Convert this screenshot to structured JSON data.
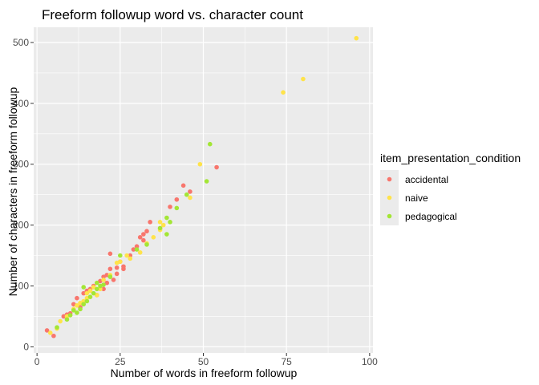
{
  "chart_data": {
    "type": "scatter",
    "title": "Freeform followup word vs. character count",
    "xlabel": "Number of words in freeform followup",
    "ylabel": "Number of characters in freeform followup",
    "xlim": [
      -1,
      101
    ],
    "ylim": [
      -10,
      525
    ],
    "x_ticks": [
      0,
      25,
      50,
      75,
      100
    ],
    "y_ticks": [
      0,
      100,
      200,
      300,
      400,
      500
    ],
    "grid": true,
    "legend": {
      "title": "item_presentation_condition",
      "position": "right"
    },
    "series": [
      {
        "name": "accidental",
        "color": "#f8766d",
        "points": [
          [
            3,
            27
          ],
          [
            5,
            18
          ],
          [
            8,
            50
          ],
          [
            9,
            53
          ],
          [
            10,
            55
          ],
          [
            11,
            70
          ],
          [
            12,
            80
          ],
          [
            13,
            65
          ],
          [
            14,
            88
          ],
          [
            15,
            92
          ],
          [
            16,
            95
          ],
          [
            17,
            100
          ],
          [
            18,
            85
          ],
          [
            19,
            108
          ],
          [
            20,
            95
          ],
          [
            20,
            115
          ],
          [
            21,
            105
          ],
          [
            21,
            118
          ],
          [
            22,
            128
          ],
          [
            22,
            153
          ],
          [
            23,
            110
          ],
          [
            24,
            130
          ],
          [
            25,
            140
          ],
          [
            26,
            132
          ],
          [
            26,
            128
          ],
          [
            28,
            150
          ],
          [
            29,
            160
          ],
          [
            30,
            165
          ],
          [
            31,
            180
          ],
          [
            32,
            175
          ],
          [
            32,
            185
          ],
          [
            33,
            190
          ],
          [
            34,
            205
          ],
          [
            37,
            195
          ],
          [
            40,
            230
          ],
          [
            42,
            242
          ],
          [
            44,
            265
          ],
          [
            46,
            255
          ],
          [
            54,
            295
          ],
          [
            24,
            120
          ]
        ]
      },
      {
        "name": "naive",
        "color": "#ffe34a",
        "points": [
          [
            4,
            23
          ],
          [
            6,
            30
          ],
          [
            7,
            42
          ],
          [
            9,
            50
          ],
          [
            11,
            62
          ],
          [
            12,
            68
          ],
          [
            13,
            72
          ],
          [
            14,
            75
          ],
          [
            15,
            80
          ],
          [
            15,
            88
          ],
          [
            16,
            92
          ],
          [
            17,
            98
          ],
          [
            18,
            85
          ],
          [
            19,
            95
          ],
          [
            20,
            110
          ],
          [
            22,
            118
          ],
          [
            24,
            138
          ],
          [
            25,
            140
          ],
          [
            27,
            150
          ],
          [
            28,
            145
          ],
          [
            31,
            155
          ],
          [
            33,
            170
          ],
          [
            35,
            180
          ],
          [
            37,
            192
          ],
          [
            37,
            205
          ],
          [
            38,
            200
          ],
          [
            46,
            245
          ],
          [
            49,
            300
          ],
          [
            74,
            418
          ],
          [
            80,
            440
          ],
          [
            96,
            507
          ]
        ]
      },
      {
        "name": "pedagogical",
        "color": "#a3e635",
        "points": [
          [
            6,
            32
          ],
          [
            9,
            45
          ],
          [
            10,
            52
          ],
          [
            11,
            60
          ],
          [
            12,
            56
          ],
          [
            13,
            62
          ],
          [
            14,
            70
          ],
          [
            14,
            98
          ],
          [
            15,
            75
          ],
          [
            16,
            82
          ],
          [
            17,
            88
          ],
          [
            18,
            95
          ],
          [
            18,
            105
          ],
          [
            19,
            100
          ],
          [
            20,
            102
          ],
          [
            22,
            115
          ],
          [
            25,
            150
          ],
          [
            30,
            160
          ],
          [
            33,
            168
          ],
          [
            37,
            195
          ],
          [
            39,
            185
          ],
          [
            39,
            212
          ],
          [
            40,
            205
          ],
          [
            42,
            228
          ],
          [
            45,
            250
          ],
          [
            51,
            272
          ],
          [
            52,
            333
          ]
        ]
      }
    ]
  }
}
